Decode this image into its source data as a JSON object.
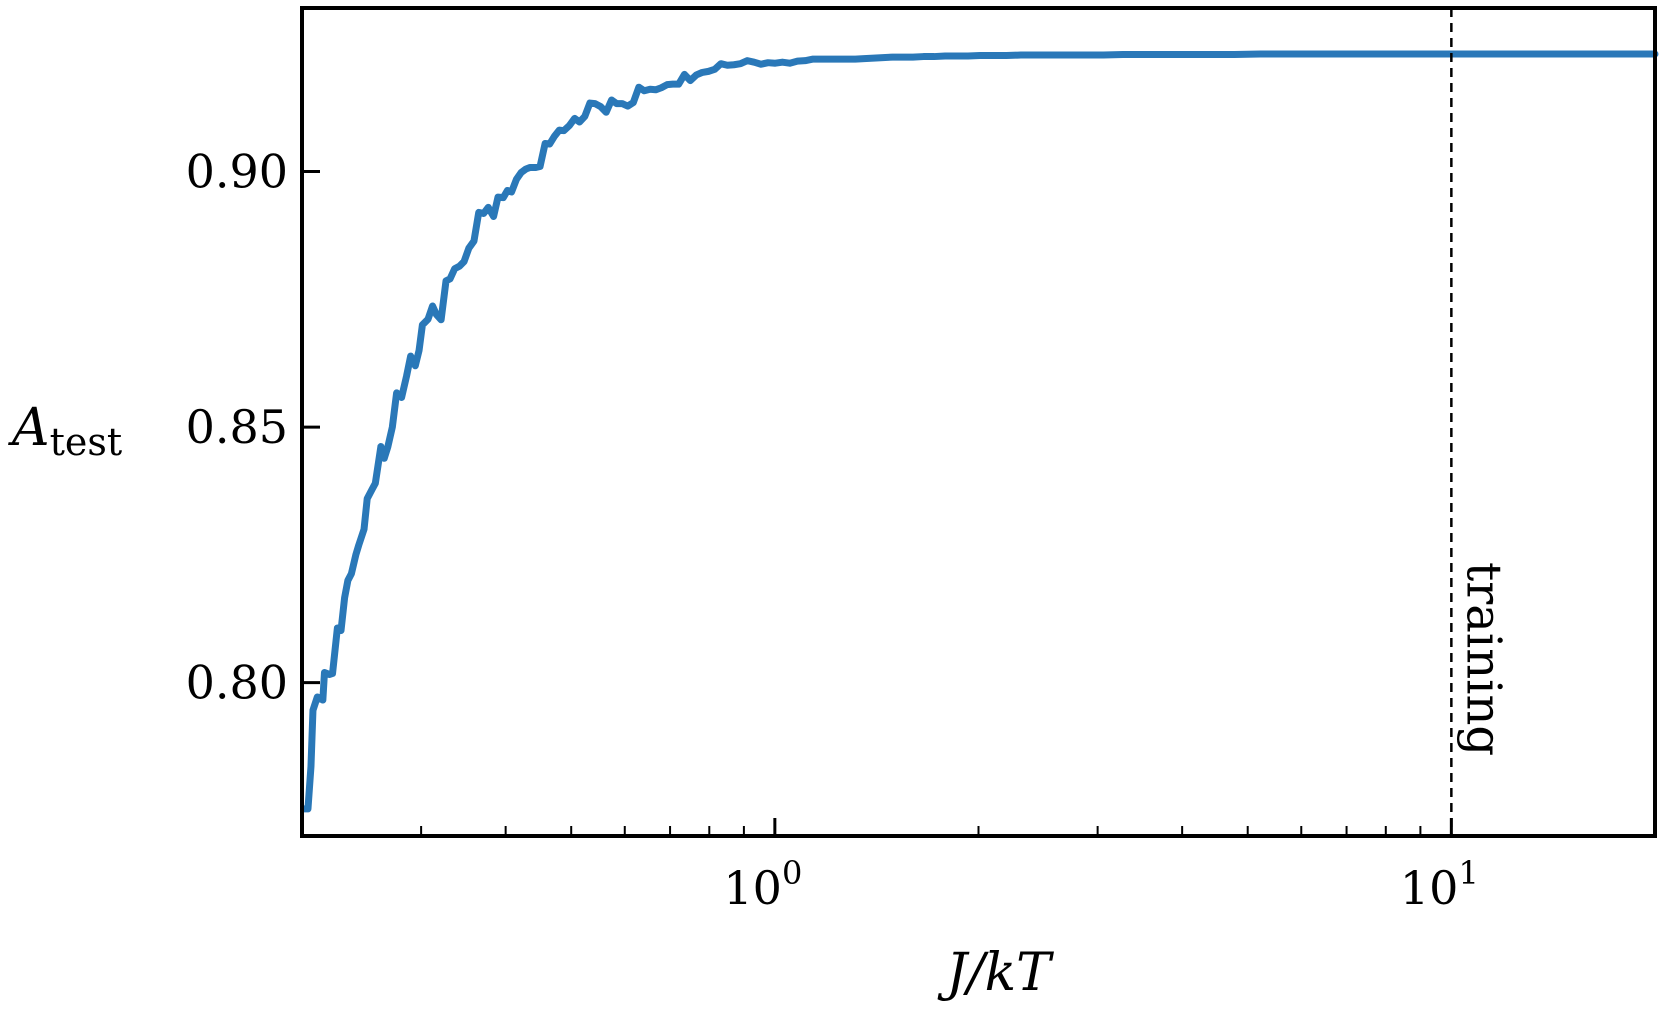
{
  "chart_data": {
    "type": "line",
    "title": "",
    "xlabel": "J/kT",
    "ylabel_main": "A",
    "ylabel_sub": "test",
    "xscale": "log",
    "xlim": [
      0.2,
      20
    ],
    "ylim": [
      0.77,
      0.932
    ],
    "grid": false,
    "legend": "none",
    "x_ticks": [
      {
        "value": 1,
        "base": "10",
        "exp": "0"
      },
      {
        "value": 10,
        "base": "10",
        "exp": "1"
      }
    ],
    "y_ticks": [
      {
        "value": 0.8,
        "label": "0.80"
      },
      {
        "value": 0.85,
        "label": "0.85"
      },
      {
        "value": 0.9,
        "label": "0.90"
      }
    ],
    "reference_line": {
      "x": 10,
      "label": "training",
      "style": "dashed",
      "color": "#000000"
    },
    "series": [
      {
        "color": "#2a78b8",
        "x": [
          0.2017,
          0.2041,
          0.2062,
          0.2076,
          0.2107,
          0.2147,
          0.2159,
          0.2197,
          0.2219,
          0.2256,
          0.2284,
          0.2312,
          0.2338,
          0.2366,
          0.2402,
          0.2426,
          0.247,
          0.2497,
          0.2538,
          0.2567,
          0.2616,
          0.2646,
          0.2678,
          0.272,
          0.276,
          0.2807,
          0.2855,
          0.2895,
          0.2941,
          0.2979,
          0.3013,
          0.3071,
          0.3119,
          0.3161,
          0.3211,
          0.3265,
          0.331,
          0.3363,
          0.342,
          0.3472,
          0.3529,
          0.3591,
          0.365,
          0.3711,
          0.377,
          0.3839,
          0.3897,
          0.3968,
          0.4024,
          0.4081,
          0.415,
          0.4216,
          0.4286,
          0.4348,
          0.4431,
          0.4497,
          0.4575,
          0.4647,
          0.4722,
          0.4801,
          0.4876,
          0.4969,
          0.5058,
          0.5144,
          0.5237,
          0.5328,
          0.5421,
          0.5527,
          0.5632,
          0.5736,
          0.5837,
          0.5947,
          0.606,
          0.6177,
          0.6294,
          0.6412,
          0.654,
          0.6666,
          0.6795,
          0.6929,
          0.7064,
          0.7208,
          0.7351,
          0.75,
          0.7655,
          0.7813,
          0.7977,
          0.815,
          0.8322,
          0.8507,
          0.87,
          0.8896,
          0.9102,
          0.932,
          0.954,
          0.9772,
          1.0014,
          1.026,
          1.052,
          1.08,
          1.109,
          1.139,
          1.171,
          1.204,
          1.239,
          1.276,
          1.315,
          1.355,
          1.4,
          1.445,
          1.493,
          1.545,
          1.6,
          1.658,
          1.72,
          1.785,
          1.856,
          1.93,
          2.01,
          2.1,
          2.2,
          2.31,
          2.43,
          2.57,
          2.71,
          2.88,
          3.06,
          3.27,
          3.5,
          3.76,
          4.05,
          4.39,
          4.78,
          5.22,
          5.74,
          6.34,
          7.04,
          7.86,
          8.83,
          10.0,
          11.4,
          13.1,
          15.2,
          17.8,
          20.0
        ],
        "y": [
          0.7753,
          0.7753,
          0.7836,
          0.7946,
          0.7972,
          0.7966,
          0.802,
          0.8016,
          0.8018,
          0.8107,
          0.8102,
          0.8166,
          0.82,
          0.8213,
          0.825,
          0.8269,
          0.83,
          0.836,
          0.8378,
          0.839,
          0.8462,
          0.8439,
          0.8461,
          0.85,
          0.8567,
          0.8558,
          0.86,
          0.8639,
          0.862,
          0.865,
          0.87,
          0.8711,
          0.8737,
          0.872,
          0.871,
          0.8786,
          0.879,
          0.881,
          0.8815,
          0.8824,
          0.885,
          0.8864,
          0.892,
          0.8918,
          0.893,
          0.8912,
          0.895,
          0.8949,
          0.8963,
          0.896,
          0.8985,
          0.8998,
          0.9005,
          0.9008,
          0.9008,
          0.901,
          0.9055,
          0.9054,
          0.9069,
          0.9081,
          0.908,
          0.909,
          0.9104,
          0.9097,
          0.9108,
          0.9134,
          0.9133,
          0.9127,
          0.9116,
          0.914,
          0.9133,
          0.9133,
          0.9128,
          0.9135,
          0.9165,
          0.9158,
          0.9161,
          0.916,
          0.9164,
          0.917,
          0.9171,
          0.9171,
          0.919,
          0.9178,
          0.9189,
          0.9194,
          0.9196,
          0.92,
          0.9211,
          0.9208,
          0.9209,
          0.9211,
          0.9217,
          0.9214,
          0.921,
          0.9213,
          0.9212,
          0.9214,
          0.9212,
          0.9216,
          0.9217,
          0.922,
          0.922,
          0.922,
          0.922,
          0.922,
          0.922,
          0.9221,
          0.9222,
          0.9223,
          0.9224,
          0.9224,
          0.9224,
          0.9225,
          0.9225,
          0.9226,
          0.9226,
          0.9226,
          0.9227,
          0.9227,
          0.9227,
          0.9228,
          0.9228,
          0.9228,
          0.9228,
          0.9228,
          0.9228,
          0.9229,
          0.9229,
          0.9229,
          0.9229,
          0.9229,
          0.9229,
          0.923,
          0.923,
          0.923,
          0.923,
          0.923,
          0.923,
          0.923,
          0.923,
          0.923,
          0.923,
          0.923,
          0.923
        ]
      }
    ]
  }
}
